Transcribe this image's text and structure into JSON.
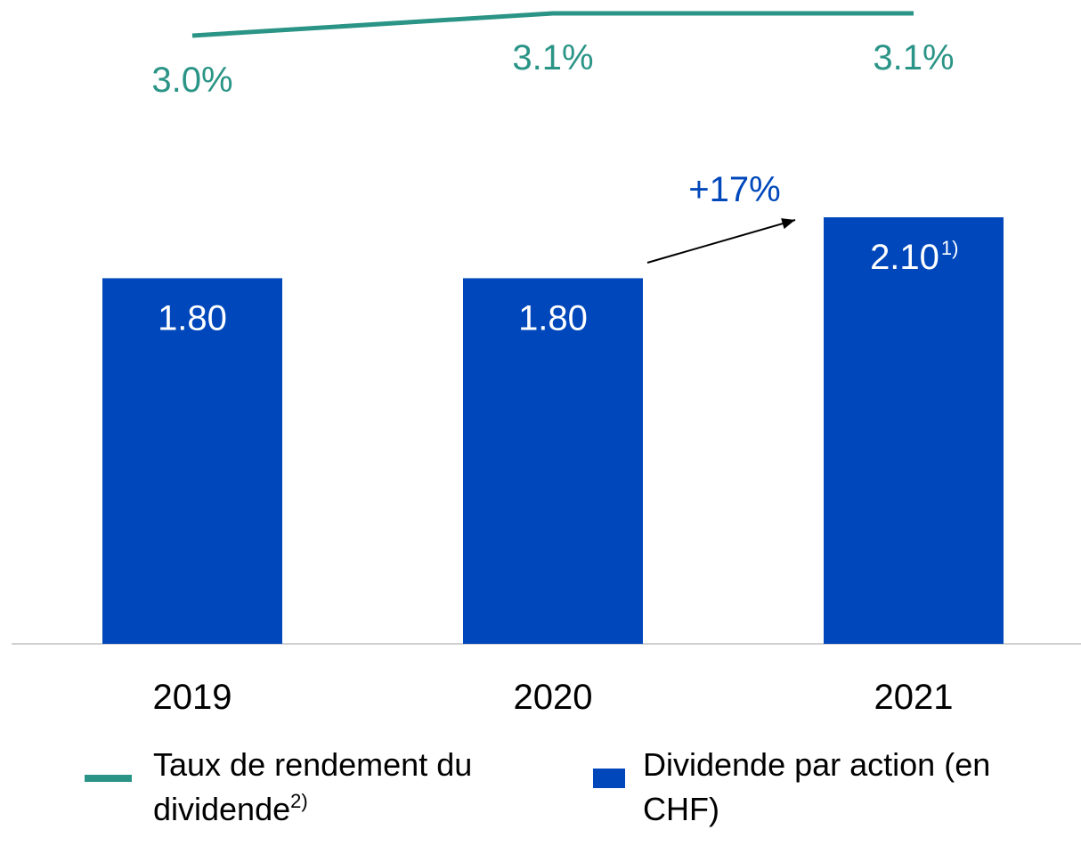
{
  "chart_data": {
    "type": "bar",
    "categories": [
      "2019",
      "2020",
      "2021"
    ],
    "series": [
      {
        "name": "Taux de rendement du dividende",
        "footnote": "2)",
        "type": "line",
        "axis": "y2",
        "color": "#2a9486",
        "values": [
          3.0,
          3.1,
          3.1
        ],
        "value_labels": [
          "3.0%",
          "3.1%",
          "3.1%"
        ]
      },
      {
        "name": "Dividende par action (en CHF)",
        "type": "bar",
        "color": "#0047bb",
        "values": [
          1.8,
          1.8,
          2.1
        ],
        "value_labels": [
          "1.80",
          "1.80",
          "2.10"
        ],
        "footnotes": [
          null,
          null,
          "1)"
        ]
      }
    ],
    "annotation": "+17%"
  }
}
